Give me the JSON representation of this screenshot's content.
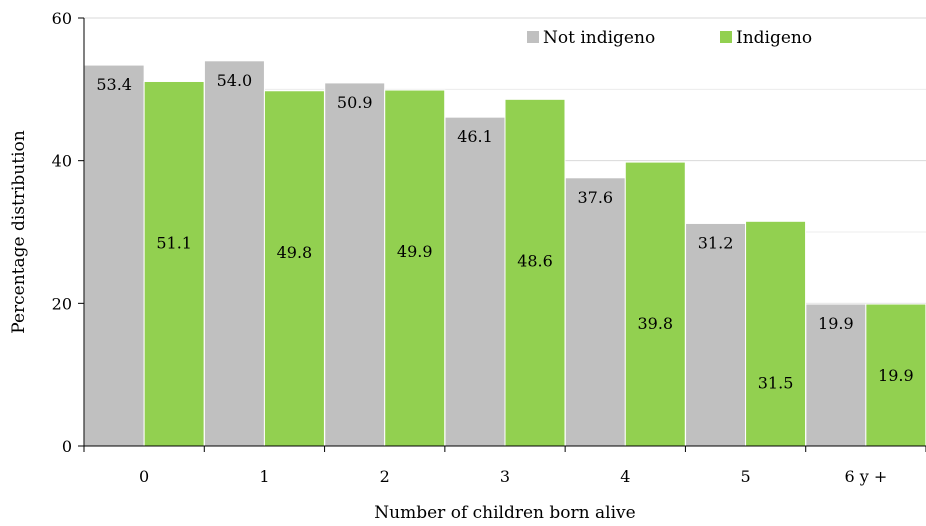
{
  "chart_data": {
    "type": "bar",
    "title": "",
    "xlabel": "Number of children born alive",
    "ylabel": "Percentage distribution",
    "categories": [
      "0",
      "1",
      "2",
      "3",
      "4",
      "5",
      "6 y +"
    ],
    "series": [
      {
        "name": "Not indigeno",
        "color": "#c0c0c0",
        "values": [
          53.4,
          54.0,
          50.9,
          46.1,
          37.6,
          31.2,
          19.9
        ]
      },
      {
        "name": "Indigeno",
        "color": "#92d050",
        "values": [
          51.1,
          49.8,
          49.9,
          48.6,
          39.8,
          31.5,
          19.9
        ]
      }
    ],
    "ylim": [
      0,
      60
    ],
    "yticks": [
      "0",
      "20",
      "40",
      "60"
    ],
    "grid": true,
    "legend_position": "top-right",
    "data_labels": [
      [
        "53.4",
        "54.0",
        "50.9",
        "46.1",
        "37.6",
        "31.2",
        "19.9"
      ],
      [
        "51.1",
        "49.8",
        "49.9",
        "48.6",
        "39.8",
        "31.5",
        "19.9"
      ]
    ]
  }
}
